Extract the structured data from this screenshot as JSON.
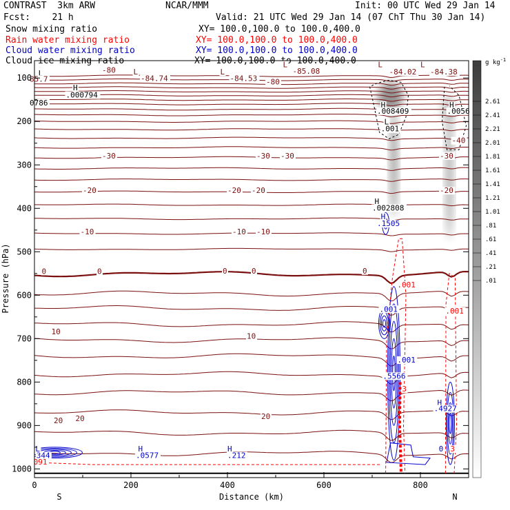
{
  "header": {
    "left1": "CONTRAST  3km ARW",
    "left2": "Fcst:    21 h",
    "center": "NCAR/MMM",
    "init": "Init: 00 UTC Wed 29 Jan 14",
    "valid": "Valid: 21 UTC Wed 29 Jan 14 (07 ChT Thu 30 Jan 14)",
    "fields": [
      {
        "name": "Snow mixing ratio",
        "xy": "XY= 100.0,100.0 to 100.0,400.0",
        "color": "#000000"
      },
      {
        "name": "Rain water mixing ratio",
        "xy": "XY= 100.0,100.0 to 100.0,400.0",
        "color": "#ff0000"
      },
      {
        "name": "Cloud water mixing ratio",
        "xy": "XY= 100.0,100.0 to 100.0,400.0",
        "color": "#0000cc"
      },
      {
        "name": "Cloud ice mixing ratio",
        "xy": "XY= 100.0,100.0 to 100.0,400.0",
        "color": "#000000"
      }
    ]
  },
  "colorbar": {
    "unit": "g kg",
    "unit_exp": "-1",
    "labels": [
      "2.61",
      "2.41",
      "2.21",
      "2.01",
      "1.81",
      "1.61",
      "1.41",
      "1.21",
      "1.01",
      ".81",
      ".61",
      ".41",
      ".21",
      ".01"
    ]
  },
  "chart_data": {
    "type": "contour-cross-section",
    "xlabel": "Distance (km)",
    "ylabel": "Pressure (hPa)",
    "xlim": [
      0,
      900
    ],
    "ylim": [
      1020,
      60
    ],
    "x_ticks": [
      0,
      200,
      400,
      600,
      800
    ],
    "y_ticks": [
      100,
      200,
      300,
      400,
      500,
      600,
      700,
      800,
      900,
      1000
    ],
    "x_end_labels": {
      "left": "S",
      "right": "N"
    },
    "colors": {
      "temperature": "#7a0f0f",
      "rain": "#ff0000",
      "cloud": "#0000cc",
      "snow": "#000000",
      "shade": "#6e6e6e"
    },
    "temperature_contours": [
      {
        "value": "-80",
        "x": 140,
        "p": 88
      },
      {
        "value": "-80",
        "x": 480,
        "p": 115
      },
      {
        "value": "-40",
        "x": 865,
        "p": 250
      },
      {
        "value": "-30",
        "x": 140,
        "p": 285
      },
      {
        "value": "-30",
        "x": 460,
        "p": 285
      },
      {
        "value": "-30",
        "x": 510,
        "p": 285
      },
      {
        "value": "-30",
        "x": 840,
        "p": 285
      },
      {
        "value": "-20",
        "x": 100,
        "p": 365
      },
      {
        "value": "-20",
        "x": 400,
        "p": 365
      },
      {
        "value": "-20",
        "x": 450,
        "p": 365
      },
      {
        "value": "-20",
        "x": 840,
        "p": 365
      },
      {
        "value": "-10",
        "x": 95,
        "p": 460
      },
      {
        "value": "-10",
        "x": 410,
        "p": 460
      },
      {
        "value": "-10",
        "x": 460,
        "p": 460
      },
      {
        "value": "0",
        "x": 15,
        "p": 551
      },
      {
        "value": "0",
        "x": 130,
        "p": 551
      },
      {
        "value": "0",
        "x": 390,
        "p": 550
      },
      {
        "value": "0",
        "x": 450,
        "p": 550
      },
      {
        "value": "0",
        "x": 680,
        "p": 550
      },
      {
        "value": "10",
        "x": 35,
        "p": 690
      },
      {
        "value": "10",
        "x": 440,
        "p": 700
      },
      {
        "value": "20",
        "x": 40,
        "p": 895
      },
      {
        "value": "20",
        "x": 85,
        "p": 890
      },
      {
        "value": "20",
        "x": 470,
        "p": 885
      }
    ],
    "min_max_labels": [
      {
        "text": "L",
        "x": 8,
        "p": 95,
        "color": "#000000"
      },
      {
        "text": "85.7",
        "x": -10,
        "p": 108,
        "color": "#7a0f0f"
      },
      {
        "text": "L",
        "x": 205,
        "p": 92,
        "color": "#7a0f0f"
      },
      {
        "text": "-84.74",
        "x": 220,
        "p": 107,
        "color": "#7a0f0f"
      },
      {
        "text": "L",
        "x": 385,
        "p": 92,
        "color": "#7a0f0f"
      },
      {
        "text": "-84.53",
        "x": 405,
        "p": 107,
        "color": "#7a0f0f"
      },
      {
        "text": "L",
        "x": 515,
        "p": 75,
        "color": "#7a0f0f"
      },
      {
        "text": "-85.08",
        "x": 535,
        "p": 90,
        "color": "#7a0f0f"
      },
      {
        "text": "L",
        "x": 712,
        "p": 75,
        "color": "#7a0f0f"
      },
      {
        "text": "-84.02",
        "x": 735,
        "p": 92,
        "color": "#7a0f0f"
      },
      {
        "text": "L",
        "x": 800,
        "p": 75,
        "color": "#7a0f0f"
      },
      {
        "text": "-84.38",
        "x": 820,
        "p": 92,
        "color": "#7a0f0f"
      },
      {
        "text": "H",
        "x": 80,
        "p": 128,
        "color": "#000000"
      },
      {
        "text": ".000794",
        "x": 65,
        "p": 145,
        "color": "#000000"
      },
      {
        "text": "0786",
        "x": -10,
        "p": 163,
        "color": "#000000"
      },
      {
        "text": "H",
        "x": 718,
        "p": 168,
        "color": "#000000"
      },
      {
        "text": ".008409",
        "x": 710,
        "p": 182,
        "color": "#000000"
      },
      {
        "text": "L",
        "x": 725,
        "p": 207,
        "color": "#000000"
      },
      {
        "text": ".001",
        "x": 718,
        "p": 223,
        "color": "#000000"
      },
      {
        "text": "H",
        "x": 860,
        "p": 168,
        "color": "#000000"
      },
      {
        "text": ".0056",
        "x": 855,
        "p": 182,
        "color": "#000000"
      },
      {
        "text": "H",
        "x": 705,
        "p": 390,
        "color": "#000000"
      },
      {
        "text": ".002808",
        "x": 700,
        "p": 405,
        "color": "#000000"
      },
      {
        "text": "H",
        "x": 718,
        "p": 425,
        "color": "#0000cc"
      },
      {
        "text": ".1505",
        "x": 710,
        "p": 441,
        "color": "#0000cc"
      },
      {
        "text": ".001",
        "x": 752,
        "p": 582,
        "color": "#ff0000"
      },
      {
        "text": ".001",
        "x": 852,
        "p": 642,
        "color": "#ff0000"
      },
      {
        "text": ".001",
        "x": 715,
        "p": 638,
        "color": "#0000cc"
      },
      {
        "text": ".001",
        "x": 752,
        "p": 755,
        "color": "#0000cc"
      },
      {
        "text": ".5566",
        "x": 722,
        "p": 792,
        "color": "#0000cc"
      },
      {
        "text": "3",
        "x": 762,
        "p": 822,
        "color": "#ff0000"
      },
      {
        "text": "H",
        "x": 835,
        "p": 853,
        "color": "#0000cc"
      },
      {
        "text": ".4927",
        "x": 828,
        "p": 867,
        "color": "#0000cc"
      },
      {
        "text": "L",
        "x": 2,
        "p": 960,
        "color": "#0000cc"
      },
      {
        "text": "344",
        "x": 4,
        "p": 975,
        "color": "#0000cc"
      },
      {
        "text": "091",
        "x": -2,
        "p": 990,
        "color": "#ff0000"
      },
      {
        "text": "H",
        "x": 215,
        "p": 960,
        "color": "#0000cc"
      },
      {
        "text": ".0577",
        "x": 210,
        "p": 975,
        "color": "#0000cc"
      },
      {
        "text": "H",
        "x": 400,
        "p": 960,
        "color": "#0000cc"
      },
      {
        "text": ".212",
        "x": 400,
        "p": 975,
        "color": "#0000cc"
      },
      {
        "text": "0",
        "x": 838,
        "p": 960,
        "color": "#0000cc"
      },
      {
        "text": "3",
        "x": 862,
        "p": 960,
        "color": "#ff0000"
      }
    ]
  }
}
